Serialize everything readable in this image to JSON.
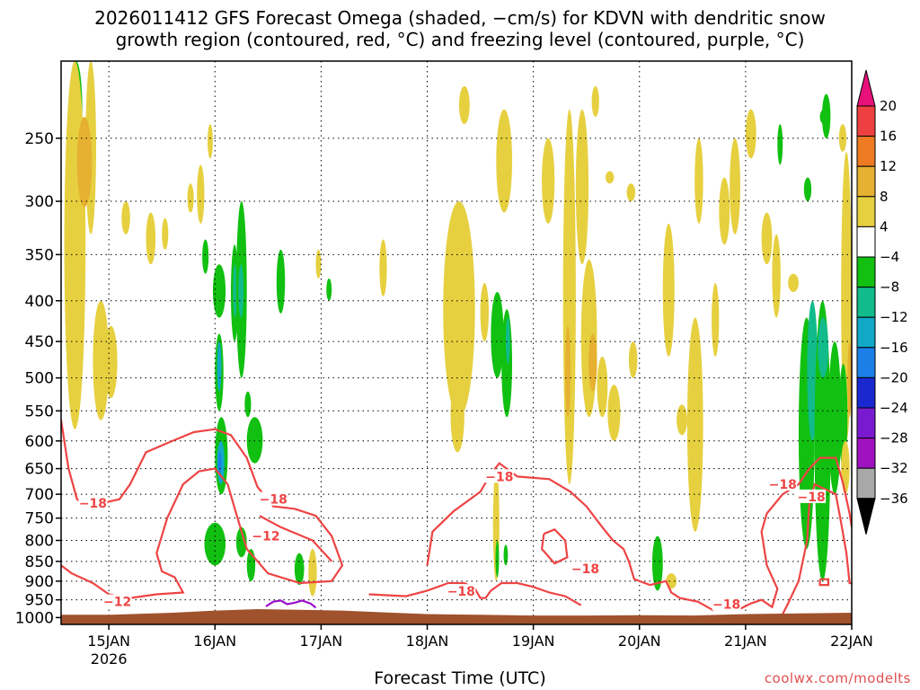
{
  "title_line1": "2026011412 GFS Forecast Omega (shaded, −cm/s) for KDVN with dendritic snow",
  "title_line2": "growth region (contoured, red, °C) and freezing level (contoured, purple, °C)",
  "xlabel": "Forecast Time (UTC)",
  "credit": "coolwx.com/modelts",
  "chart_data": {
    "type": "heatmap",
    "x_ticks": [
      "15JAN",
      "16JAN",
      "17JAN",
      "18JAN",
      "19JAN",
      "20JAN",
      "21JAN",
      "22JAN"
    ],
    "x_year_label": "2026",
    "x_range": [
      14.55,
      22.0
    ],
    "y_ticks": [
      250,
      300,
      350,
      400,
      450,
      500,
      550,
      600,
      650,
      700,
      750,
      800,
      850,
      900,
      950,
      1000
    ],
    "y_range": [
      200,
      1020
    ],
    "y_scale": "log pressure (hPa)",
    "colorbar": {
      "labels": [
        "20",
        "16",
        "12",
        "8",
        "4",
        "−4",
        "−8",
        "−12",
        "−16",
        "−20",
        "−24",
        "−28",
        "−32",
        "−36"
      ],
      "colors": [
        "#e8107a",
        "#ee4040",
        "#ee7b22",
        "#e6b030",
        "#e6d040",
        "#ffffff",
        "#11c011",
        "#11bb8b",
        "#11a8c8",
        "#1a80e8",
        "#1a28d0",
        "#7a1ad0",
        "#a011c0",
        "#a8a8a8",
        "#000000"
      ]
    },
    "contour_labels": [
      {
        "text": "−18",
        "t": 14.85,
        "p": 718
      },
      {
        "text": "−12",
        "t": 15.08,
        "p": 955
      },
      {
        "text": "−18",
        "t": 16.55,
        "p": 710
      },
      {
        "text": "−12",
        "t": 16.48,
        "p": 790
      },
      {
        "text": "−18",
        "t": 18.32,
        "p": 927
      },
      {
        "text": "−18",
        "t": 18.68,
        "p": 665
      },
      {
        "text": "−18",
        "t": 19.49,
        "p": 868
      },
      {
        "text": "−18",
        "t": 20.82,
        "p": 962
      },
      {
        "text": "−18",
        "t": 21.35,
        "p": 680
      },
      {
        "text": "−18",
        "t": 21.62,
        "p": 705
      }
    ],
    "grid": true
  }
}
